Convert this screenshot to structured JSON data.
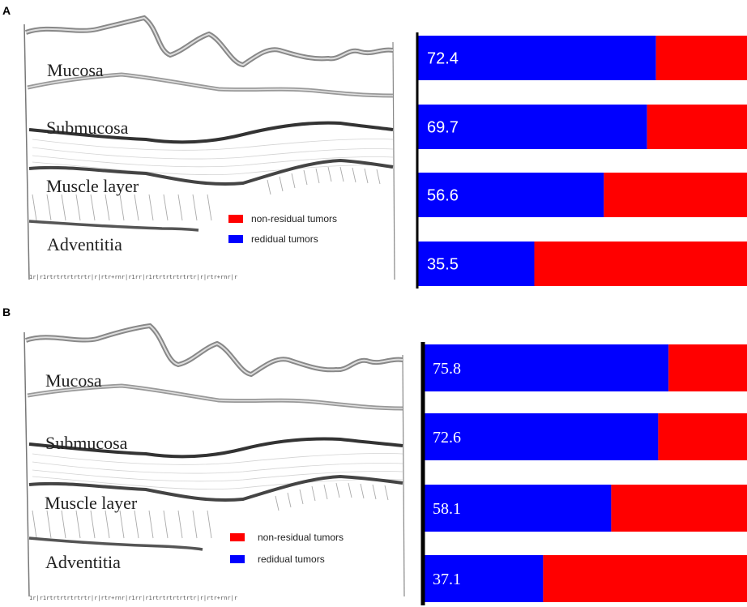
{
  "panels": [
    {
      "label": "A",
      "layers": [
        "Mucosa",
        "Submucosa",
        "Muscle layer",
        "Adventitia"
      ],
      "legend": [
        "non-residual tumors",
        "redidual tumors"
      ],
      "ruler": "1r|r1rtrtrtrtrtrtr|r|rtr+rnr|r1rr|r1rtrtrtrtrtrtr|r|rtr+rnr|r"
    },
    {
      "label": "B",
      "layers": [
        "Mucosa",
        "Submucosa",
        "Muscle layer",
        "Adventitia"
      ],
      "legend": [
        "non-residual tumors",
        "redidual tumors"
      ],
      "ruler": "1r|r1rtrtrtrtrtrtr|r|rtr+rnr|r1rr|r1rtrtrtrtrtrtr|r|rtr+rnr|r"
    }
  ],
  "colors": {
    "non_residual": "#ff0000",
    "residual": "#0000ff",
    "axis": "#000000"
  },
  "chart_data": [
    {
      "type": "bar",
      "orientation": "horizontal",
      "stacked": true,
      "categories": [
        "Mucosa",
        "Submucosa",
        "Muscle layer",
        "Adventitia"
      ],
      "series": [
        {
          "name": "redidual tumors",
          "values": [
            72.4,
            69.7,
            56.6,
            35.5
          ]
        },
        {
          "name": "non-residual tumors",
          "values": [
            27.6,
            30.3,
            43.4,
            64.5
          ]
        }
      ],
      "data_labels": [
        "72.4",
        "69.7",
        "56.6",
        "35.5"
      ],
      "xlim": [
        0,
        100
      ]
    },
    {
      "type": "bar",
      "orientation": "horizontal",
      "stacked": true,
      "categories": [
        "Mucosa",
        "Submucosa",
        "Muscle layer",
        "Adventitia"
      ],
      "series": [
        {
          "name": "redidual tumors",
          "values": [
            75.8,
            72.6,
            58.1,
            37.1
          ]
        },
        {
          "name": "non-residual tumors",
          "values": [
            24.2,
            27.4,
            41.9,
            62.9
          ]
        }
      ],
      "data_labels": [
        "75.8",
        "72.6",
        "58.1",
        "37.1"
      ],
      "xlim": [
        0,
        100
      ]
    }
  ]
}
